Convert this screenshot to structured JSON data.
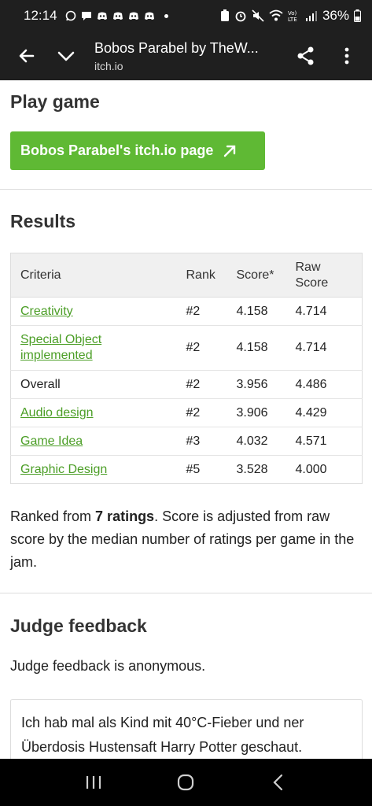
{
  "status_bar": {
    "time": "12:14",
    "battery": "36%",
    "icons": [
      "whatsapp-icon",
      "chat-icon",
      "discord-icon",
      "discord-icon",
      "discord-icon",
      "discord-icon",
      "battery-saver-icon",
      "alarm-icon",
      "mute-icon",
      "wifi-icon",
      "volte-icon",
      "signal-icon",
      "battery-icon"
    ]
  },
  "app_bar": {
    "title": "Bobos Parabel by TheW...",
    "url": "itch.io"
  },
  "play_game": {
    "heading": "Play game",
    "button_label": "Bobos Parabel's itch.io page"
  },
  "results": {
    "heading": "Results",
    "columns": [
      "Criteria",
      "Rank",
      "Score*",
      "Raw Score"
    ],
    "rows": [
      {
        "criteria": "Creativity",
        "link": true,
        "rank": "#2",
        "score": "4.158",
        "raw": "4.714"
      },
      {
        "criteria": "Special Object implemented",
        "link": true,
        "rank": "#2",
        "score": "4.158",
        "raw": "4.714"
      },
      {
        "criteria": "Overall",
        "link": false,
        "rank": "#2",
        "score": "3.956",
        "raw": "4.486"
      },
      {
        "criteria": "Audio design",
        "link": true,
        "rank": "#2",
        "score": "3.906",
        "raw": "4.429"
      },
      {
        "criteria": "Game Idea",
        "link": true,
        "rank": "#3",
        "score": "4.032",
        "raw": "4.571"
      },
      {
        "criteria": "Graphic Design",
        "link": true,
        "rank": "#5",
        "score": "3.528",
        "raw": "4.000"
      }
    ],
    "ranked_prefix": "Ranked from ",
    "ranked_count": "7 ratings",
    "ranked_suffix": ". Score is adjusted from raw score by the median number of ratings per game in the jam."
  },
  "judge": {
    "heading": "Judge feedback",
    "anonymous_note": "Judge feedback is anonymous.",
    "feedback_text": "Ich hab mal als Kind mit 40°C-Fieber und ner Überdosis Hustensaft Harry Potter geschaut."
  },
  "colors": {
    "accent_green": "#5fb934",
    "link_green": "#4b9e26",
    "toolbar": "#1f1f1f"
  }
}
